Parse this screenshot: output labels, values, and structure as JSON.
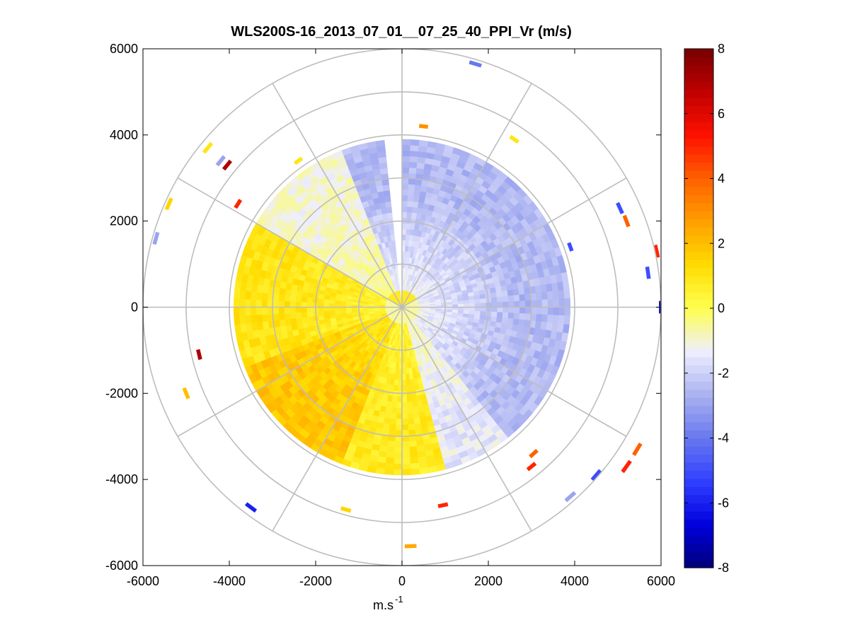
{
  "chart_data": {
    "type": "heatmap",
    "title": "WLS200S-16_2013_07_01__07_25_40_PPI_Vr (m/s)",
    "xlabel": "m.s",
    "xlabel_sup": "-1",
    "ylabel": "",
    "xlim": [
      -6000,
      6000
    ],
    "ylim": [
      -6000,
      6000
    ],
    "xticks": [
      -6000,
      -4000,
      -2000,
      0,
      2000,
      4000,
      6000
    ],
    "yticks": [
      -6000,
      -4000,
      -2000,
      0,
      2000,
      4000,
      6000
    ],
    "polar_rings": [
      1000,
      2000,
      3000,
      4000,
      5000,
      6000
    ],
    "polar_spokes_deg": [
      0,
      30,
      60,
      90,
      120,
      150,
      180,
      210,
      240,
      270,
      300,
      330
    ],
    "colorbar": {
      "min": -8,
      "max": 8,
      "ticks": [
        -8,
        -6,
        -4,
        -2,
        0,
        2,
        4,
        6,
        8
      ],
      "colors": [
        "#00007a",
        "#0000dd",
        "#3040ff",
        "#6878ee",
        "#aab2f0",
        "#eeeeff",
        "#ffff50",
        "#ffdc00",
        "#ffa000",
        "#ff6000",
        "#ff1000",
        "#c00000",
        "#780000"
      ]
    },
    "velocity_field": {
      "range_min_m": 0,
      "range_max_m": 3900,
      "description": "radial velocity field: negative (blue) on north/east side, positive (yellow/orange) on west/south side",
      "gap_azimuth_deg": [
        -7,
        0
      ],
      "sectors": [
        {
          "az_from": -20,
          "az_to": 140,
          "vr": -2.5
        },
        {
          "az_from": 140,
          "az_to": 165,
          "vr": -1.5
        },
        {
          "az_from": 165,
          "az_to": 200,
          "vr": 0.8
        },
        {
          "az_from": 200,
          "az_to": 250,
          "vr": 1.8
        },
        {
          "az_from": 250,
          "az_to": 300,
          "vr": 1.0
        },
        {
          "az_from": 300,
          "az_to": 340,
          "vr": -1.0
        }
      ]
    },
    "scattered_returns": [
      {
        "x": 1700,
        "y": 5650,
        "vr": -4
      },
      {
        "x": -4200,
        "y": 3400,
        "vr": -3
      },
      {
        "x": -4050,
        "y": 3300,
        "vr": 7
      },
      {
        "x": -4500,
        "y": 3700,
        "vr": 1
      },
      {
        "x": 3900,
        "y": 1400,
        "vr": -5
      },
      {
        "x": 5200,
        "y": 2000,
        "vr": 4
      },
      {
        "x": 5050,
        "y": 2300,
        "vr": -5
      },
      {
        "x": 5900,
        "y": 1300,
        "vr": 5
      },
      {
        "x": 5700,
        "y": 800,
        "vr": -5
      },
      {
        "x": 6000,
        "y": 0,
        "vr": -7
      },
      {
        "x": 5450,
        "y": -3300,
        "vr": 4
      },
      {
        "x": 5200,
        "y": -3700,
        "vr": 5
      },
      {
        "x": 4500,
        "y": -3900,
        "vr": -5
      },
      {
        "x": 3050,
        "y": -3400,
        "vr": 4
      },
      {
        "x": 3000,
        "y": -3700,
        "vr": 5
      },
      {
        "x": 3900,
        "y": -4400,
        "vr": -3
      },
      {
        "x": 950,
        "y": -4600,
        "vr": 5
      },
      {
        "x": -1300,
        "y": -4700,
        "vr": 1.5
      },
      {
        "x": -3500,
        "y": -4650,
        "vr": -6
      },
      {
        "x": -4700,
        "y": -1100,
        "vr": 7
      },
      {
        "x": -5000,
        "y": -2000,
        "vr": 2
      },
      {
        "x": 500,
        "y": 4200,
        "vr": 3
      },
      {
        "x": 200,
        "y": -5550,
        "vr": 2.5
      },
      {
        "x": -5400,
        "y": 2400,
        "vr": 1.5
      },
      {
        "x": -5700,
        "y": 1600,
        "vr": -3
      },
      {
        "x": -3800,
        "y": 2400,
        "vr": 5
      },
      {
        "x": -2400,
        "y": 3400,
        "vr": 1
      },
      {
        "x": 2600,
        "y": 3900,
        "vr": 1
      }
    ]
  }
}
